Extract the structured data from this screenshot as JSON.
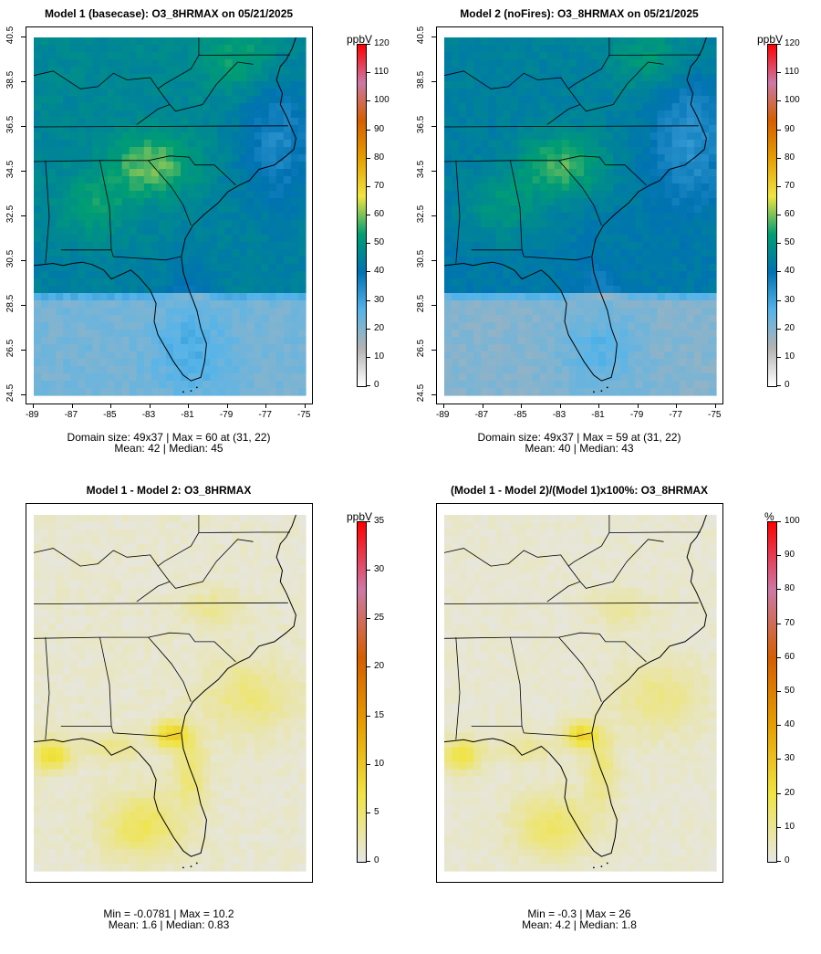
{
  "chart_data": [
    {
      "type": "heatmap",
      "title": "Model 1 (basecase): O3_8HRMAX on 05/21/2025",
      "unit": "ppbV",
      "xlim": [
        -89,
        -75
      ],
      "ylim": [
        24.5,
        40.5
      ],
      "xticks": [
        "-89",
        "-87",
        "-85",
        "-83",
        "-81",
        "-79",
        "-77",
        "-75"
      ],
      "yticks": [
        "24.5",
        "26.5",
        "28.5",
        "30.5",
        "32.5",
        "34.5",
        "36.5",
        "38.5",
        "40.5"
      ],
      "colorbar_range": [
        0,
        120
      ],
      "colorbar_ticks": [
        "0",
        "10",
        "20",
        "30",
        "40",
        "50",
        "60",
        "70",
        "80",
        "90",
        "100",
        "110",
        "120"
      ],
      "colorbar_colors": [
        "#ffffff",
        "#b3b3b3",
        "#56b4e9",
        "#0072b2",
        "#009e73",
        "#f0e442",
        "#e69f00",
        "#d55e00",
        "#cc79a7",
        "#ff0000"
      ],
      "stats_line1": "Domain size: 49x37 | Max = 60 at (31, 22)",
      "stats_line2": "Mean: 42 |  Median: 45"
    },
    {
      "type": "heatmap",
      "title": "Model 2 (noFires): O3_8HRMAX on 05/21/2025",
      "unit": "ppbV",
      "xlim": [
        -89,
        -75
      ],
      "ylim": [
        24.5,
        40.5
      ],
      "xticks": [
        "-89",
        "-87",
        "-85",
        "-83",
        "-81",
        "-79",
        "-77",
        "-75"
      ],
      "yticks": [
        "24.5",
        "26.5",
        "28.5",
        "30.5",
        "32.5",
        "34.5",
        "36.5",
        "38.5",
        "40.5"
      ],
      "colorbar_range": [
        0,
        120
      ],
      "colorbar_ticks": [
        "0",
        "10",
        "20",
        "30",
        "40",
        "50",
        "60",
        "70",
        "80",
        "90",
        "100",
        "110",
        "120"
      ],
      "colorbar_colors": [
        "#ffffff",
        "#b3b3b3",
        "#56b4e9",
        "#0072b2",
        "#009e73",
        "#f0e442",
        "#e69f00",
        "#d55e00",
        "#cc79a7",
        "#ff0000"
      ],
      "stats_line1": "Domain size: 49x37 | Max = 59 at (31, 22)",
      "stats_line2": "Mean: 40 |  Median: 43"
    },
    {
      "type": "heatmap",
      "title": "Model 1 - Model 2: O3_8HRMAX",
      "unit": "ppbV",
      "colorbar_range": [
        0,
        35
      ],
      "colorbar_ticks": [
        "0",
        "5",
        "10",
        "15",
        "20",
        "25",
        "30",
        "35"
      ],
      "colorbar_colors": [
        "#e6e6e6",
        "#f0e442",
        "#e69f00",
        "#d55e00",
        "#cc79a7",
        "#ff0000"
      ],
      "stats_line1": "Min = -0.0781 | Max = 10.2",
      "stats_line2": "Mean: 1.6 |  Median: 0.83"
    },
    {
      "type": "heatmap",
      "title": "(Model 1 - Model 2)/(Model 1)x100%: O3_8HRMAX",
      "unit": "%",
      "colorbar_range": [
        0,
        100
      ],
      "colorbar_ticks": [
        "0",
        "10",
        "20",
        "30",
        "40",
        "50",
        "60",
        "70",
        "80",
        "90",
        "100"
      ],
      "colorbar_colors": [
        "#e6e6e6",
        "#f0e442",
        "#e69f00",
        "#d55e00",
        "#cc79a7",
        "#ff0000"
      ],
      "stats_line1": "Min = -0.3 | Max = 26",
      "stats_line2": "Mean: 4.2 |  Median: 1.8"
    }
  ]
}
